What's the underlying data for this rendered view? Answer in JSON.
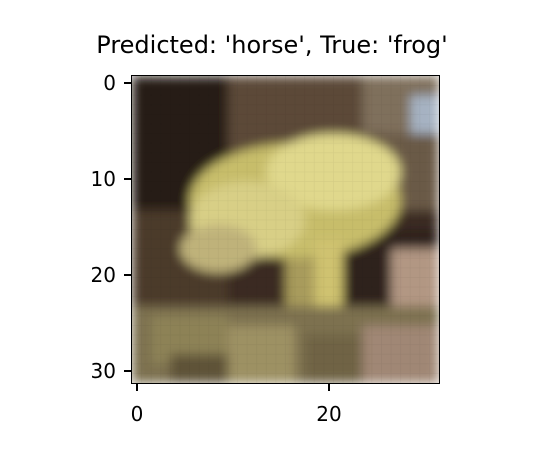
{
  "title": "Predicted: 'horse', True: 'frog'",
  "image": {
    "subject": "frog",
    "resolution": "32x32",
    "palette": {
      "dark_background": "#2a1f18",
      "mid_shadow": "#4b3a2a",
      "frog_light": "#e0d88c",
      "frog_mid": "#c7bd6b",
      "ground_olive": "#8d8257",
      "ground_pinkish": "#b29783",
      "sky_tint": "#a6b2c2"
    }
  },
  "y_axis": {
    "ticks": [
      "0",
      "10",
      "20",
      "30"
    ]
  },
  "x_axis": {
    "ticks": [
      "0",
      "20"
    ]
  }
}
